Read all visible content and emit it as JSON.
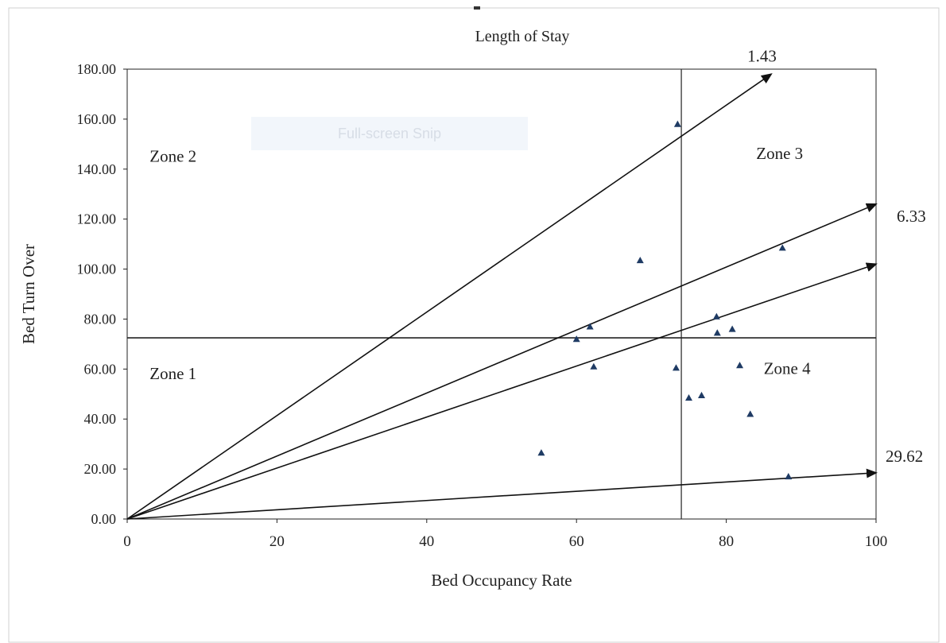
{
  "chart_data": {
    "type": "scatter",
    "title": "Length of Stay",
    "xlabel": "Bed Occupancy Rate",
    "ylabel": "Bed Turn Over",
    "xlim": [
      0,
      100
    ],
    "ylim": [
      0,
      180
    ],
    "x_ticks": [
      "0",
      "20",
      "40",
      "60",
      "80",
      "100"
    ],
    "y_ticks": [
      "0.00",
      "20.00",
      "40.00",
      "60.00",
      "80.00",
      "100.00",
      "120.00",
      "140.00",
      "160.00",
      "180.00"
    ],
    "threshold_x": 74,
    "threshold_y": 72.5,
    "zones": [
      {
        "label": "Zone 1",
        "x": 3,
        "y": 56
      },
      {
        "label": "Zone 2",
        "x": 3,
        "y": 143
      },
      {
        "label": "Zone 3",
        "x": 84,
        "y": 144
      },
      {
        "label": "Zone 4",
        "x": 85,
        "y": 58
      }
    ],
    "reference_lines": [
      {
        "label": "1.43",
        "x_end": 86,
        "y_end": 178
      },
      {
        "label": "6.33",
        "x_end": 100,
        "y_end": 126
      },
      {
        "label": "29.62",
        "x_end": 100,
        "y_end": 18.5
      },
      {
        "label": "",
        "x_end": 100,
        "y_end": 102
      }
    ],
    "points": [
      {
        "x": 73.5,
        "y": 158
      },
      {
        "x": 68.5,
        "y": 103.5
      },
      {
        "x": 87.5,
        "y": 108.5
      },
      {
        "x": 61.8,
        "y": 77
      },
      {
        "x": 60,
        "y": 72
      },
      {
        "x": 78.7,
        "y": 81
      },
      {
        "x": 78.8,
        "y": 74.5
      },
      {
        "x": 80.8,
        "y": 76
      },
      {
        "x": 62.3,
        "y": 61
      },
      {
        "x": 73.3,
        "y": 60.5
      },
      {
        "x": 81.8,
        "y": 61.5
      },
      {
        "x": 75,
        "y": 48.5
      },
      {
        "x": 76.7,
        "y": 49.5
      },
      {
        "x": 83.2,
        "y": 42
      },
      {
        "x": 55.3,
        "y": 26.5
      },
      {
        "x": 88.3,
        "y": 17
      }
    ],
    "grid": false,
    "marker_color": "#1f3b64",
    "line_color": "#111111"
  },
  "overlay": {
    "snip_label": "Full-screen Snip"
  }
}
